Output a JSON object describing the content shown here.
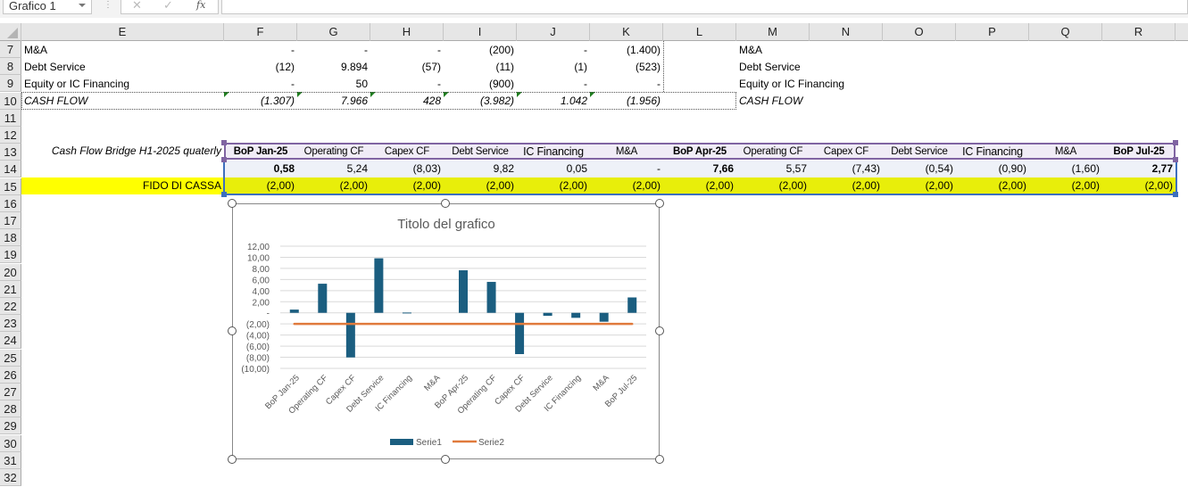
{
  "formula_bar": {
    "name_box": "Grafico 1",
    "cancel_icon": "✕",
    "enter_icon": "✓",
    "fx_label": "fx",
    "formula": ""
  },
  "columns": [
    "E",
    "F",
    "G",
    "H",
    "I",
    "J",
    "K",
    "L",
    "M",
    "N",
    "O",
    "P",
    "Q",
    "R"
  ],
  "rows": [
    "7",
    "8",
    "9",
    "10",
    "11",
    "12",
    "13",
    "14",
    "15",
    "16",
    "17",
    "18",
    "19",
    "20",
    "21",
    "22",
    "23",
    "24",
    "25",
    "26",
    "27",
    "28",
    "29",
    "30",
    "31",
    "32"
  ],
  "summary": {
    "rows": [
      {
        "label": "M&A",
        "values": [
          "-",
          "-",
          "-",
          "(200)",
          "-",
          "(1.400)"
        ],
        "m_label": "M&A"
      },
      {
        "label": "Debt Service",
        "values": [
          "(12)",
          "9.894",
          "(57)",
          "(11)",
          "(1)",
          "(523)"
        ],
        "m_label": "Debt Service"
      },
      {
        "label": "Equity or IC Financing",
        "values": [
          "-",
          "50",
          "-",
          "(900)",
          "-",
          "-"
        ],
        "m_label": "Equity or IC Financing"
      },
      {
        "label": "CASH FLOW",
        "values": [
          "(1.307)",
          "7.966",
          "428",
          "(3.982)",
          "1.042",
          "(1.956)"
        ],
        "m_label": "CASH FLOW"
      }
    ]
  },
  "bridge": {
    "title": "Cash Flow Bridge H1-2025 quaterly",
    "headers": [
      "BoP Jan-25",
      "Operating CF",
      "Capex CF",
      "Debt Service",
      "IC Financing",
      "M&A",
      "BoP Apr-25",
      "Operating CF",
      "Capex CF",
      "Debt Service",
      "IC Financing",
      "M&A",
      "BoP Jul-25"
    ],
    "values": [
      "0,58",
      "5,24",
      "(8,03)",
      "9,82",
      "0,05",
      "-",
      "7,66",
      "5,57",
      "(7,43)",
      "(0,54)",
      "(0,90)",
      "(1,60)",
      "2,77"
    ],
    "fido_label": "FIDO DI CASSA",
    "fido_values": [
      "(2,00)",
      "(2,00)",
      "(2,00)",
      "(2,00)",
      "(2,00)",
      "(2,00)",
      "(2,00)",
      "(2,00)",
      "(2,00)",
      "(2,00)",
      "(2,00)",
      "(2,00)",
      "(2,00)"
    ],
    "colors": {
      "header_border": "#8064a2",
      "header_bg": "#f0ecf6",
      "values_bg": "#eef1f8",
      "fido_bg": "#e8ee0a",
      "fido_label_bg": "#ffff00",
      "selection": "#3d6fbd"
    }
  },
  "chart_data": {
    "type": "bar",
    "title": "Titolo del grafico",
    "categories": [
      "BoP Jan-25",
      "Operating CF",
      "Capex CF",
      "Debt Service",
      "IC Financing",
      "M&A",
      "BoP Apr-25",
      "Operating CF",
      "Capex CF",
      "Debt Service",
      "IC Financing",
      "M&A",
      "BoP Jul-25"
    ],
    "series": [
      {
        "name": "Serie1",
        "kind": "bar",
        "color": "#1b5e80",
        "values": [
          0.58,
          5.24,
          -8.03,
          9.82,
          0.05,
          0,
          7.66,
          5.57,
          -7.43,
          -0.54,
          -0.9,
          -1.6,
          2.77
        ]
      },
      {
        "name": "Serie2",
        "kind": "line",
        "color": "#e07a3c",
        "values": [
          -2,
          -2,
          -2,
          -2,
          -2,
          -2,
          -2,
          -2,
          -2,
          -2,
          -2,
          -2,
          -2
        ]
      }
    ],
    "yticks": [
      "12,00",
      "10,00",
      "8,00",
      "6,00",
      "4,00",
      "2,00",
      "-",
      "(2,00)",
      "(4,00)",
      "(6,00)",
      "(8,00)",
      "(10,00)"
    ],
    "ytick_values": [
      12,
      10,
      8,
      6,
      4,
      2,
      0,
      -2,
      -4,
      -6,
      -8,
      -10
    ],
    "ylim": [
      -10,
      12
    ],
    "xlabel": "",
    "ylabel": "",
    "grid": true,
    "legend": "bottom"
  }
}
